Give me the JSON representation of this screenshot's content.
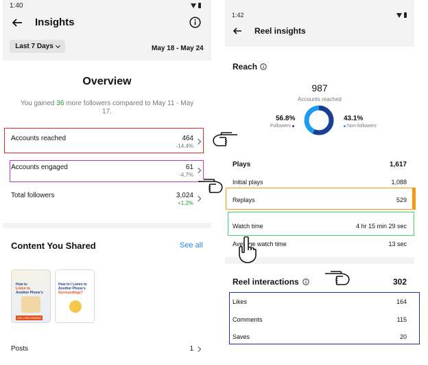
{
  "left": {
    "status_time": "1:40",
    "header_title": "Insights",
    "date_filter": "Last 7 Days",
    "date_range": "May 18 - May 24",
    "overview": {
      "title": "Overview",
      "gain_prefix": "You gained ",
      "gain_count": "36",
      "gain_suffix": " more followers compared to May 11 - May 17."
    },
    "rows": [
      {
        "label": "Accounts reached",
        "value": "464",
        "change": "-14.4%"
      },
      {
        "label": "Accounts engaged",
        "value": "61",
        "change": "-4.7%"
      },
      {
        "label": "Total followers",
        "value": "3,024",
        "change": "+1.2%"
      }
    ],
    "content": {
      "title": "Content You Shared",
      "see_all": "See all",
      "thumb1_line1": "How to",
      "thumb1_line2": "Listen to",
      "thumb1_line3": "Another Phone's",
      "thumb1_tag": "CALL RECORDING",
      "thumb2_line1": "How to I Listen to",
      "thumb2_line2": "Another Phone's",
      "thumb2_line3": "Surroundings?"
    },
    "posts": {
      "label": "Posts",
      "value": "1"
    }
  },
  "right": {
    "status_time": "1:42",
    "header_title": "Reel insights",
    "reach": {
      "title": "Reach",
      "total": "987",
      "total_label": "Accounts reached",
      "followers_pct": "56.8%",
      "followers_label": "Followers",
      "nonfollowers_pct": "43.1%",
      "nonfollowers_label": "Non-followers",
      "followers_fraction": 0.568
    },
    "plays": {
      "label": "Plays",
      "value": "1,617",
      "rows": [
        {
          "label": "Initial plays",
          "value": "1,088"
        },
        {
          "label": "Replays",
          "value": "529"
        },
        {
          "label": "Watch time",
          "value": "4 hr 15 min 29 sec"
        },
        {
          "label": "Average watch time",
          "value": "13 sec"
        }
      ]
    },
    "interactions": {
      "title": "Reel interactions",
      "value": "302",
      "rows": [
        {
          "label": "Likes",
          "value": "164"
        },
        {
          "label": "Comments",
          "value": "115"
        },
        {
          "label": "Saves",
          "value": "20"
        }
      ]
    }
  },
  "colors": {
    "accent_blue": "#1c87e5",
    "donut_dark": "#1d3f8f",
    "donut_light": "#1c9bf0",
    "gain_green": "#1a9b3a",
    "highlight_red": "#d42a2a",
    "highlight_purple": "#b43ad8",
    "highlight_orange": "#f39a12",
    "highlight_green": "#3ed46a",
    "highlight_navy": "#1e2aa8"
  }
}
